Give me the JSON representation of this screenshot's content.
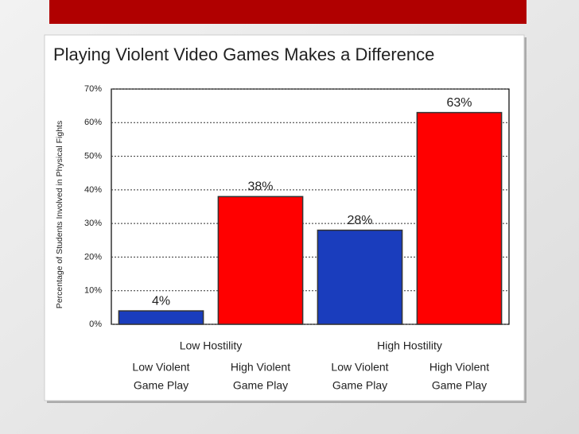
{
  "chart_data": {
    "type": "bar",
    "title": "Playing Violent Video Games Makes a Difference",
    "y_label": "Percentage of Students Involved in Physical Fights",
    "groups": [
      "Low Hostility",
      "High Hostility"
    ],
    "categories": [
      [
        "Low Violent",
        "Game Play"
      ],
      [
        "High Violent",
        "Game Play"
      ],
      [
        "Low Violent",
        "Game Play"
      ],
      [
        "High Violent",
        "Game Play"
      ]
    ],
    "values": [
      4,
      38,
      28,
      63
    ],
    "value_labels": [
      "4%",
      "38%",
      "28%",
      "63%"
    ],
    "colors": [
      "#1a3dbd",
      "#ff0000",
      "#1a3dbd",
      "#ff0000"
    ],
    "ylim": [
      0,
      70
    ],
    "yticks": [
      {
        "value": 0,
        "label": "0%"
      },
      {
        "value": 10,
        "label": "10%"
      },
      {
        "value": 20,
        "label": "20%"
      },
      {
        "value": 30,
        "label": "30%"
      },
      {
        "value": 40,
        "label": "40%"
      },
      {
        "value": 50,
        "label": "50%"
      },
      {
        "value": 60,
        "label": "60%"
      },
      {
        "value": 70,
        "label": "70%"
      }
    ],
    "grid": true
  }
}
